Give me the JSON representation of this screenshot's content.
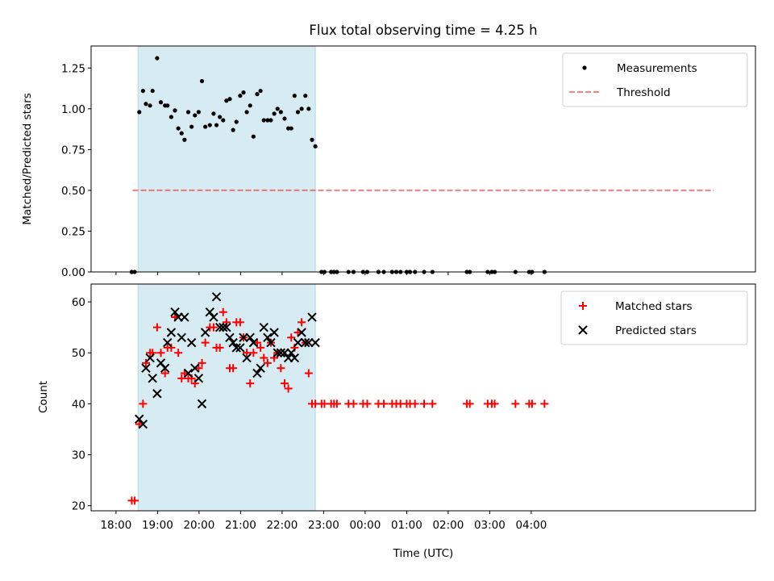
{
  "chart_data": [
    {
      "type": "scatter",
      "title": "Flux total observing time = 4.25 h",
      "xlabel": "",
      "ylabel": "Matched/Predicted stars",
      "ylim": [
        0,
        1.385
      ],
      "xlim": [
        -0.6,
        15.4
      ],
      "yticks": [
        0,
        0.25,
        0.5,
        0.75,
        1.0,
        1.25
      ],
      "ytick_labels": [
        "0.00",
        "0.25",
        "0.50",
        "0.75",
        "1.00",
        "1.25"
      ],
      "shaded_span": [
        0.53,
        4.8
      ],
      "threshold": {
        "y": 0.5,
        "x0": 0.4,
        "x1": 14.4
      },
      "legend": {
        "position": "top-right",
        "entries": [
          "Measurements",
          "Threshold"
        ]
      },
      "series": [
        {
          "name": "Measurements",
          "x": [
            0.38,
            0.45,
            0.56,
            0.65,
            0.72,
            0.82,
            0.88,
            0.99,
            1.08,
            1.18,
            1.24,
            1.33,
            1.42,
            1.5,
            1.58,
            1.65,
            1.74,
            1.82,
            1.9,
            1.99,
            2.07,
            2.15,
            2.26,
            2.35,
            2.42,
            2.5,
            2.58,
            2.66,
            2.74,
            2.82,
            2.9,
            2.99,
            3.07,
            3.15,
            3.23,
            3.31,
            3.4,
            3.48,
            3.56,
            3.65,
            3.73,
            3.81,
            3.89,
            3.97,
            4.06,
            4.15,
            4.22,
            4.3,
            4.38,
            4.47,
            4.56,
            4.64,
            4.72,
            4.8,
            4.95,
            5.02,
            5.18,
            5.25,
            5.32,
            5.6,
            5.72,
            5.95,
            6.05,
            6.32,
            6.45,
            6.65,
            6.75,
            6.85,
            7.0,
            7.08,
            7.2,
            7.42,
            7.62,
            8.45,
            8.52,
            8.95,
            9.05,
            9.12,
            9.62,
            9.95,
            10.02,
            10.32
          ],
          "y": [
            0,
            0,
            0.98,
            1.11,
            1.03,
            1.02,
            1.11,
            1.31,
            1.04,
            1.02,
            1.02,
            0.95,
            0.99,
            0.88,
            0.85,
            0.81,
            0.98,
            0.89,
            0.96,
            0.98,
            1.17,
            0.89,
            0.9,
            0.97,
            0.9,
            0.95,
            0.93,
            1.05,
            1.06,
            0.87,
            0.92,
            1.08,
            1.1,
            0.98,
            1.02,
            0.83,
            1.09,
            1.11,
            0.93,
            0.93,
            0.93,
            0.97,
            1.0,
            0.98,
            0.94,
            0.88,
            0.88,
            1.08,
            0.98,
            1.0,
            1.08,
            1.0,
            0.81,
            0.77,
            0,
            0,
            0,
            0,
            0,
            0,
            0,
            0,
            0,
            0,
            0,
            0,
            0,
            0,
            0,
            0,
            0,
            0,
            0,
            0,
            0,
            0,
            0,
            0,
            0,
            0,
            0,
            0
          ]
        }
      ]
    },
    {
      "type": "scatter",
      "title": "",
      "xlabel": "Time (UTC)",
      "ylabel": "Count",
      "ylim": [
        19,
        63.5
      ],
      "xlim": [
        -0.6,
        15.4
      ],
      "yticks": [
        20,
        30,
        40,
        50,
        60
      ],
      "ytick_labels": [
        "20",
        "30",
        "40",
        "50",
        "60"
      ],
      "xtick_labels": [
        "18:00",
        "19:00",
        "20:00",
        "21:00",
        "22:00",
        "23:00",
        "00:00",
        "01:00",
        "02:00",
        "03:00",
        "04:00"
      ],
      "shaded_span": [
        0.53,
        4.8
      ],
      "legend": {
        "position": "top-right",
        "entries": [
          "Matched stars",
          "Predicted stars"
        ]
      },
      "series": [
        {
          "name": "Matched stars",
          "x": [
            0.38,
            0.45,
            0.56,
            0.65,
            0.72,
            0.82,
            0.88,
            0.99,
            1.08,
            1.18,
            1.24,
            1.33,
            1.42,
            1.5,
            1.58,
            1.65,
            1.74,
            1.82,
            1.9,
            1.99,
            2.07,
            2.15,
            2.26,
            2.35,
            2.42,
            2.5,
            2.58,
            2.66,
            2.74,
            2.82,
            2.9,
            2.99,
            3.07,
            3.15,
            3.23,
            3.31,
            3.4,
            3.48,
            3.56,
            3.65,
            3.73,
            3.81,
            3.89,
            3.97,
            4.06,
            4.15,
            4.22,
            4.3,
            4.38,
            4.47,
            4.56,
            4.64,
            4.72,
            4.8,
            4.95,
            5.02,
            5.18,
            5.25,
            5.32,
            5.6,
            5.72,
            5.95,
            6.05,
            6.32,
            6.45,
            6.65,
            6.75,
            6.85,
            7.0,
            7.08,
            7.2,
            7.42,
            7.62,
            8.45,
            8.52,
            8.95,
            9.05,
            9.12,
            9.62,
            9.95,
            10.02,
            10.32
          ],
          "y": [
            21,
            21,
            36,
            40,
            48,
            50,
            50,
            55,
            50,
            46,
            51,
            51,
            57,
            50,
            45,
            46,
            45,
            45,
            44,
            47,
            48,
            52,
            55,
            55,
            51,
            51,
            58,
            56,
            47,
            47,
            56,
            56,
            53,
            50,
            44,
            50,
            52,
            51,
            49,
            48,
            52,
            49,
            50,
            47,
            44,
            43,
            53,
            51,
            54,
            56,
            52,
            46,
            40,
            40,
            40,
            40,
            40,
            40,
            40,
            40,
            40,
            40,
            40,
            40,
            40,
            40,
            40,
            40,
            40,
            40,
            40,
            40,
            40,
            40,
            40,
            40,
            40,
            40,
            40,
            40,
            40,
            40
          ]
        },
        {
          "name": "Predicted stars",
          "x": [
            0.56,
            0.65,
            0.72,
            0.82,
            0.88,
            0.99,
            1.08,
            1.18,
            1.24,
            1.33,
            1.42,
            1.5,
            1.58,
            1.65,
            1.74,
            1.82,
            1.9,
            1.99,
            2.07,
            2.15,
            2.26,
            2.35,
            2.42,
            2.5,
            2.58,
            2.66,
            2.74,
            2.82,
            2.9,
            2.99,
            3.07,
            3.15,
            3.23,
            3.31,
            3.4,
            3.48,
            3.56,
            3.65,
            3.73,
            3.81,
            3.89,
            3.97,
            4.06,
            4.15,
            4.22,
            4.3,
            4.38,
            4.47,
            4.56,
            4.64,
            4.72,
            4.8
          ],
          "y": [
            37,
            36,
            47,
            49,
            45,
            42,
            48,
            47,
            52,
            54,
            58,
            57,
            53,
            57,
            46,
            52,
            47,
            45,
            40,
            54,
            58,
            57,
            61,
            55,
            55,
            55,
            53,
            52,
            51,
            51,
            53,
            49,
            53,
            52,
            46,
            47,
            55,
            53,
            52,
            54,
            50,
            50,
            50,
            49,
            50,
            49,
            52,
            54,
            52,
            52,
            57,
            52
          ]
        }
      ]
    }
  ]
}
